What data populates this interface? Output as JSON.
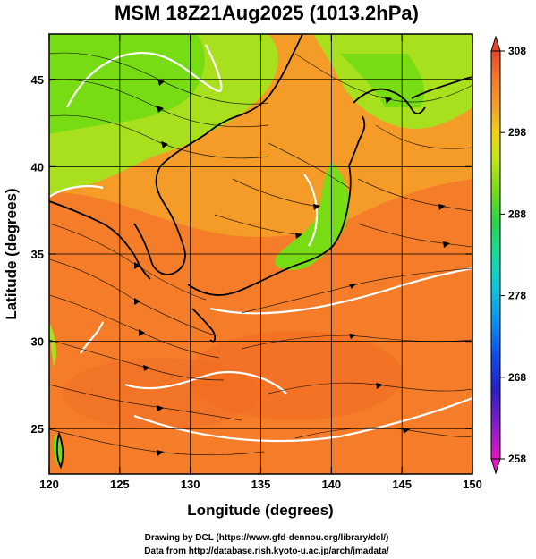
{
  "chart_data": {
    "type": "heatmap",
    "title": "MSM 18Z21Aug2025 (1013.2hPa)",
    "xlabel": "Longitude (degrees)",
    "ylabel": "Latitude  (degrees)",
    "xlim": [
      120,
      150
    ],
    "ylim": [
      22.4,
      47.6
    ],
    "x_ticks": [
      120,
      125,
      130,
      135,
      140,
      145,
      150
    ],
    "y_ticks": [
      25,
      30,
      35,
      40,
      45
    ],
    "grid": true,
    "overlay": "streamlines",
    "colorbar": {
      "min": 258,
      "max": 308,
      "ticks": [
        308,
        298,
        288,
        278,
        268,
        258
      ],
      "colors": [
        "#e815c4",
        "#8a1cc8",
        "#2a1fc6",
        "#0c49ee",
        "#0a8cf2",
        "#0ac8dc",
        "#14dca0",
        "#2ad24a",
        "#78dc14",
        "#c8e614",
        "#f0d214",
        "#f5a028",
        "#f57a2a",
        "#e8462a"
      ]
    },
    "credits": [
      "Drawing by DCL (https://www.gfd-dennou.org/library/dcl/)",
      "Data from http://database.rish.kyoto-u.ac.jp/arch/jmadata/"
    ]
  },
  "colors": {
    "land_green": "#78dc14",
    "land_yellow_green": "#a8e01e",
    "sea_orange": "#f57d2a",
    "contour": "#ffffff",
    "coast": "#000000"
  }
}
